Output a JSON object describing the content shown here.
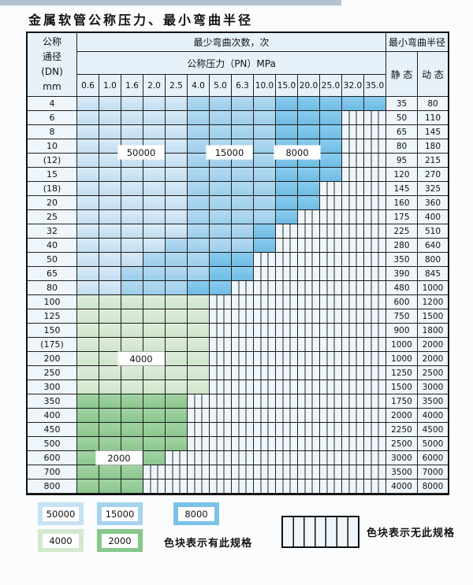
{
  "title": "金属软管公称压力、最小弯曲半径",
  "table": {
    "corner": {
      "lines": [
        "公称",
        "通径",
        "(DN)",
        "mm"
      ]
    },
    "headers": {
      "bend_cycles": "最少弯曲次数，次",
      "pressure": "公称压力（PN）MPa",
      "min_bend_radius": "最小弯曲半径",
      "static": "静 态",
      "dynamic": "动 态"
    },
    "pressure_columns": [
      "0.6",
      "1.0",
      "1.6",
      "2.0",
      "2.5",
      "4.0",
      "5.0",
      "6.3",
      "10.0",
      "15.0",
      "20.0",
      "25.0",
      "32.0",
      "35.0"
    ],
    "rows": [
      {
        "dn": "4",
        "zones": [
          [
            "50000",
            5
          ],
          [
            "15000",
            9
          ],
          [
            "8000",
            14
          ]
        ],
        "static": "35",
        "dynamic": "80"
      },
      {
        "dn": "6",
        "zones": [
          [
            "50000",
            5
          ],
          [
            "15000",
            9
          ],
          [
            "8000",
            12
          ]
        ],
        "static": "50",
        "dynamic": "110"
      },
      {
        "dn": "8",
        "zones": [
          [
            "50000",
            5
          ],
          [
            "15000",
            9
          ],
          [
            "8000",
            12
          ]
        ],
        "static": "65",
        "dynamic": "145"
      },
      {
        "dn": "10",
        "zones": [
          [
            "50000",
            5
          ],
          [
            "15000",
            9
          ],
          [
            "8000",
            12
          ]
        ],
        "static": "80",
        "dynamic": "180"
      },
      {
        "dn": "(12)",
        "zones": [
          [
            "50000",
            5
          ],
          [
            "15000",
            9
          ],
          [
            "8000",
            12
          ]
        ],
        "static": "95",
        "dynamic": "215"
      },
      {
        "dn": "15",
        "zones": [
          [
            "50000",
            5
          ],
          [
            "15000",
            9
          ],
          [
            "8000",
            12
          ]
        ],
        "static": "120",
        "dynamic": "270"
      },
      {
        "dn": "(18)",
        "zones": [
          [
            "50000",
            5
          ],
          [
            "15000",
            9
          ],
          [
            "8000",
            11
          ]
        ],
        "static": "145",
        "dynamic": "325"
      },
      {
        "dn": "20",
        "zones": [
          [
            "50000",
            5
          ],
          [
            "15000",
            9
          ],
          [
            "8000",
            11
          ]
        ],
        "static": "160",
        "dynamic": "360"
      },
      {
        "dn": "25",
        "zones": [
          [
            "50000",
            5
          ],
          [
            "15000",
            9
          ],
          [
            "8000",
            10
          ]
        ],
        "static": "175",
        "dynamic": "400"
      },
      {
        "dn": "32",
        "zones": [
          [
            "50000",
            5
          ],
          [
            "15000",
            8
          ],
          [
            "8000",
            9
          ]
        ],
        "static": "225",
        "dynamic": "510"
      },
      {
        "dn": "40",
        "zones": [
          [
            "50000",
            4
          ],
          [
            "15000",
            8
          ],
          [
            "8000",
            9
          ]
        ],
        "static": "280",
        "dynamic": "640"
      },
      {
        "dn": "50",
        "zones": [
          [
            "50000",
            3
          ],
          [
            "15000",
            6
          ],
          [
            "8000",
            8
          ]
        ],
        "static": "350",
        "dynamic": "800"
      },
      {
        "dn": "65",
        "zones": [
          [
            "50000",
            2
          ],
          [
            "15000",
            6
          ],
          [
            "8000",
            8
          ]
        ],
        "static": "390",
        "dynamic": "845"
      },
      {
        "dn": "80",
        "zones": [
          [
            "50000",
            2
          ],
          [
            "15000",
            5
          ],
          [
            "8000",
            7
          ]
        ],
        "static": "480",
        "dynamic": "1000"
      },
      {
        "dn": "100",
        "zones": [
          [
            "4000",
            6
          ]
        ],
        "static": "600",
        "dynamic": "1200"
      },
      {
        "dn": "125",
        "zones": [
          [
            "4000",
            6
          ]
        ],
        "static": "750",
        "dynamic": "1500"
      },
      {
        "dn": "150",
        "zones": [
          [
            "4000",
            6
          ]
        ],
        "static": "900",
        "dynamic": "1800"
      },
      {
        "dn": "(175)",
        "zones": [
          [
            "4000",
            6
          ]
        ],
        "static": "1000",
        "dynamic": "2000"
      },
      {
        "dn": "200",
        "zones": [
          [
            "4000",
            6
          ]
        ],
        "static": "1000",
        "dynamic": "2000"
      },
      {
        "dn": "250",
        "zones": [
          [
            "4000",
            6
          ]
        ],
        "static": "1250",
        "dynamic": "2500"
      },
      {
        "dn": "300",
        "zones": [
          [
            "4000",
            6
          ]
        ],
        "static": "1500",
        "dynamic": "3000"
      },
      {
        "dn": "350",
        "zones": [
          [
            "2000",
            5
          ]
        ],
        "static": "1750",
        "dynamic": "3500"
      },
      {
        "dn": "400",
        "zones": [
          [
            "2000",
            5
          ]
        ],
        "static": "2000",
        "dynamic": "4000"
      },
      {
        "dn": "450",
        "zones": [
          [
            "2000",
            5
          ]
        ],
        "static": "2250",
        "dynamic": "4500"
      },
      {
        "dn": "500",
        "zones": [
          [
            "2000",
            5
          ]
        ],
        "static": "2500",
        "dynamic": "5000"
      },
      {
        "dn": "600",
        "zones": [
          [
            "2000",
            4
          ]
        ],
        "static": "3000",
        "dynamic": "6000"
      },
      {
        "dn": "700",
        "zones": [
          [
            "2000",
            3
          ]
        ],
        "static": "3500",
        "dynamic": "7000"
      },
      {
        "dn": "800",
        "zones": [
          [
            "2000",
            3
          ]
        ],
        "static": "4000",
        "dynamic": "8000"
      }
    ],
    "overlays": [
      {
        "label": "50000"
      },
      {
        "label": "15000"
      },
      {
        "label": "8000"
      },
      {
        "label": "4000"
      },
      {
        "label": "2000"
      }
    ]
  },
  "legend": {
    "grades": [
      {
        "label": "50000"
      },
      {
        "label": "15000"
      },
      {
        "label": "8000"
      },
      {
        "label": "4000"
      },
      {
        "label": "2000"
      }
    ],
    "has_spec_note": "色块表示有此规格",
    "no_spec_note": "色块表示无此规格"
  },
  "colors": {
    "grade_50000": "#cde4f4",
    "grade_15000": "#a9d5ee",
    "grade_8000": "#7cc2e8",
    "grade_4000": "#d7e9d3",
    "grade_2000": "#94cb96",
    "hatch_bg": "#eef5fb",
    "header_bg": "#e7f1f9",
    "grid_line": "#1c1c1c"
  }
}
